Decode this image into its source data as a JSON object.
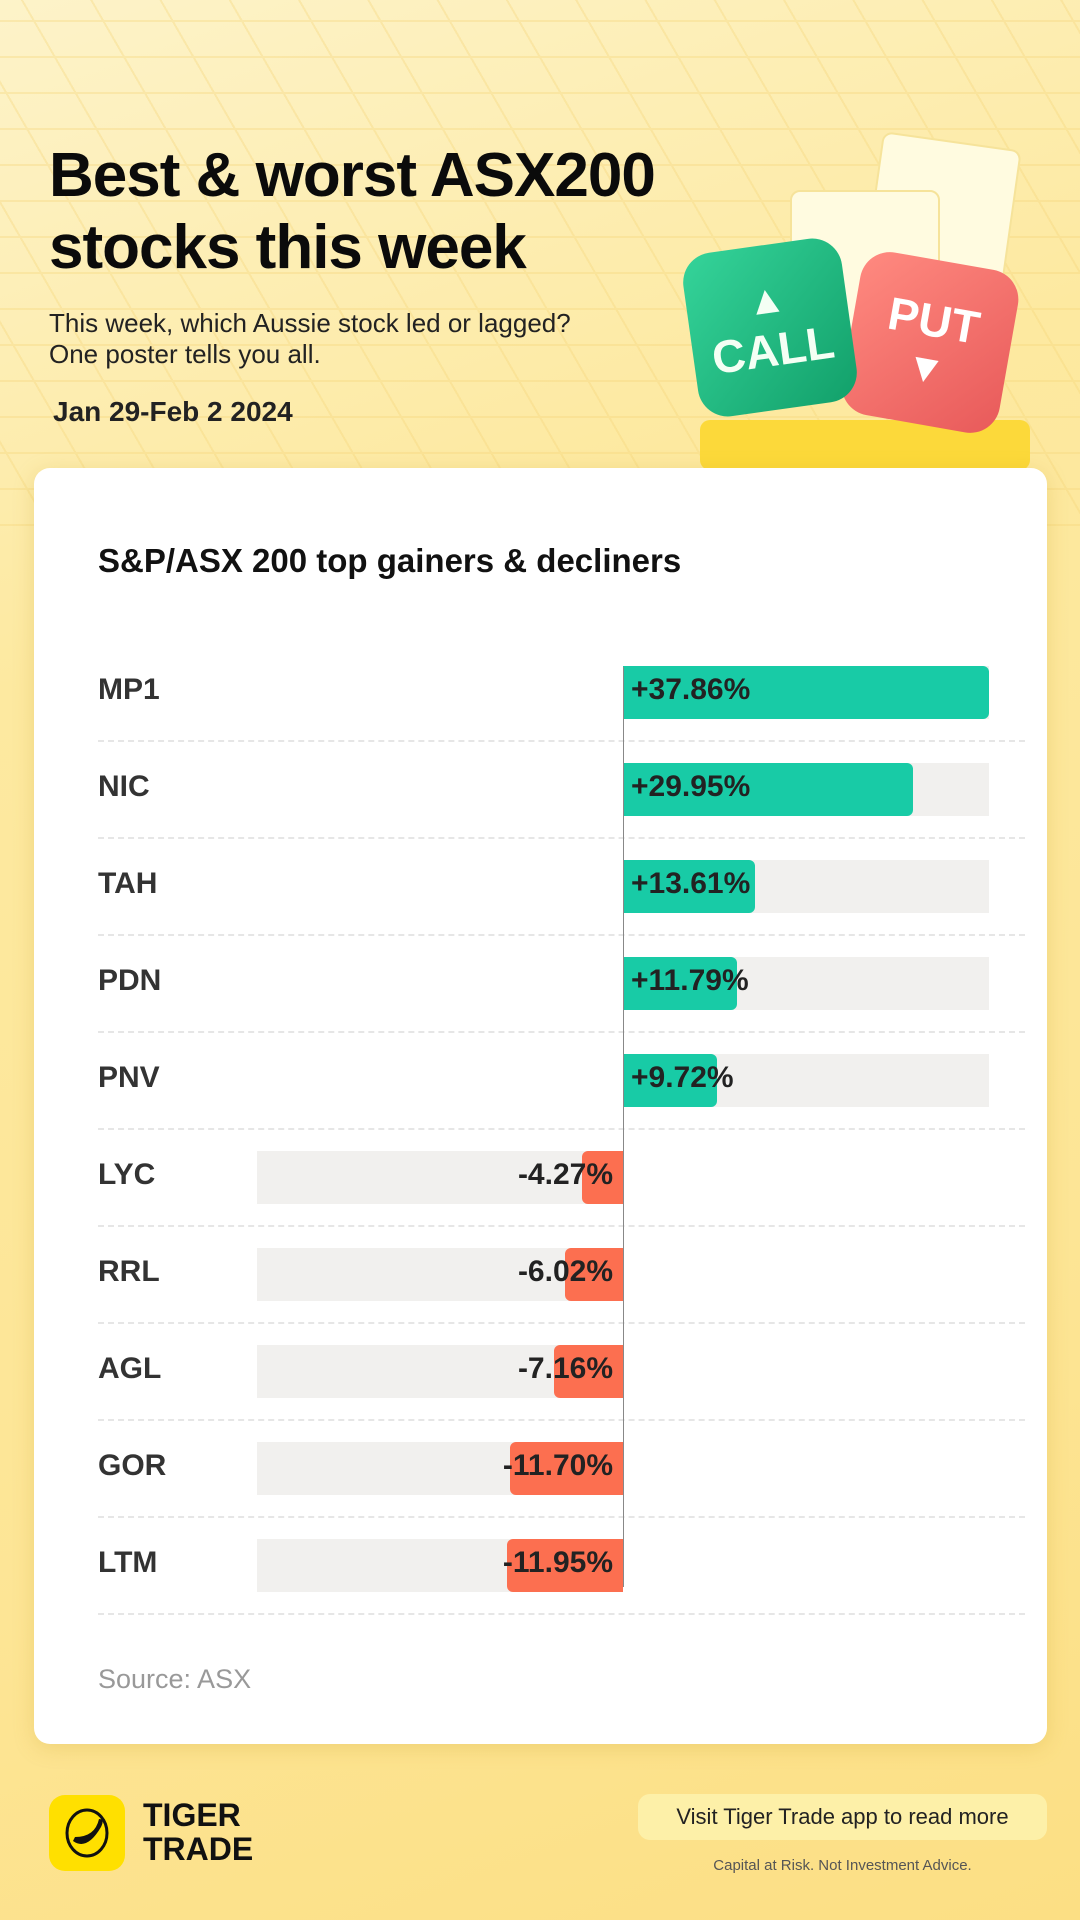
{
  "header": {
    "title_line1": "Best & worst ASX200",
    "title_line2": "stocks this week",
    "subtitle_line1": "This week, which Aussie stock led or lagged?",
    "subtitle_line2": "One poster tells you all.",
    "date": "Jan 29-Feb 2 2024"
  },
  "illustration": {
    "call": "CALL",
    "put": "PUT"
  },
  "chart_data": {
    "type": "bar",
    "title": "S&P/ASX 200 top gainers & decliners",
    "categories": [
      "MP1",
      "NIC",
      "TAH",
      "PDN",
      "PNV",
      "LYC",
      "RRL",
      "AGL",
      "GOR",
      "LTM"
    ],
    "values": [
      37.86,
      29.95,
      13.61,
      11.79,
      9.72,
      -4.27,
      -6.02,
      -7.16,
      -11.7,
      -11.95
    ],
    "labels": [
      "+37.86%",
      "+29.95%",
      "+13.61%",
      "+11.79%",
      "+9.72%",
      "-4.27%",
      "-6.02%",
      "-7.16%",
      "-11.70%",
      "-11.95%"
    ],
    "xlim": [
      -30,
      37.86
    ],
    "colors": {
      "positive": "#18cba6",
      "negative": "#fc6f50"
    }
  },
  "source": "Source: ASX",
  "footer": {
    "brand_line1": "TIGER",
    "brand_line2": "TRADE",
    "cta": "Visit Tiger Trade app to read more",
    "disclaimer": "Capital at Risk. Not Investment Advice."
  }
}
